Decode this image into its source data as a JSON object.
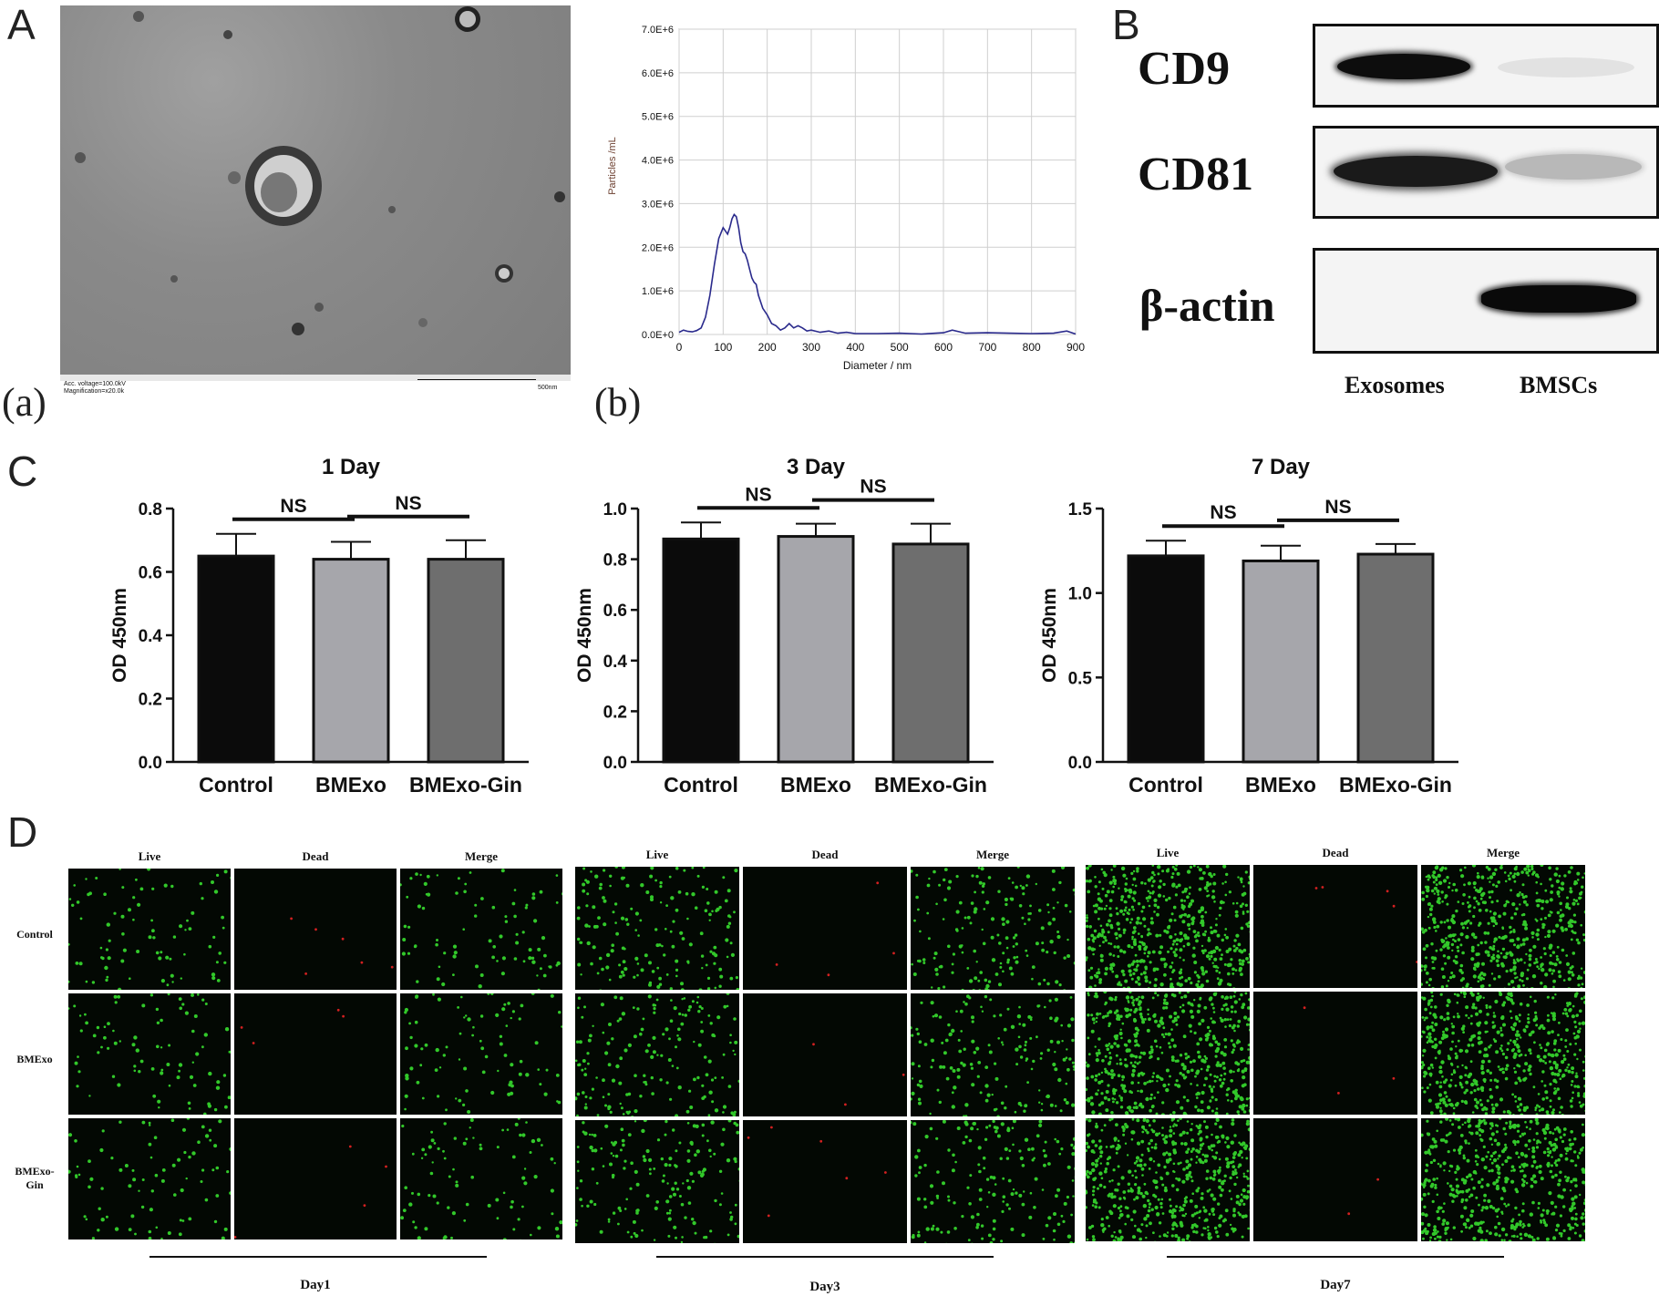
{
  "panel_letters": {
    "A": "A",
    "B": "B",
    "C": "C",
    "D": "D"
  },
  "sub_letters": {
    "a": "(a)",
    "b": "(b)"
  },
  "tem": {
    "caption_line1": "Acc. voltage=100.0kV",
    "caption_line2": "Magnification=x20.0k",
    "scale_label": "500nm"
  },
  "nta_chart": {
    "type": "line",
    "xlabel": "Diameter / nm",
    "ylabel": "Particles /mL",
    "x_ticks": [
      "0",
      "100",
      "200",
      "300",
      "400",
      "500",
      "600",
      "700",
      "800",
      "900"
    ],
    "y_ticks": [
      "0.0E+0",
      "1.0E+6",
      "2.0E+6",
      "3.0E+6",
      "4.0E+6",
      "5.0E+6",
      "6.0E+6",
      "7.0E+6"
    ],
    "xlim": [
      0,
      900
    ],
    "ylim": [
      0,
      7000000
    ],
    "line_color": "#2a2a8c",
    "x": [
      0,
      10,
      20,
      30,
      40,
      50,
      60,
      70,
      80,
      90,
      100,
      110,
      115,
      120,
      125,
      130,
      135,
      140,
      145,
      150,
      155,
      160,
      165,
      170,
      175,
      180,
      190,
      200,
      210,
      220,
      230,
      240,
      250,
      260,
      270,
      280,
      290,
      300,
      320,
      340,
      360,
      380,
      400,
      450,
      500,
      550,
      600,
      620,
      650,
      700,
      750,
      800,
      850,
      880,
      900
    ],
    "y": [
      50000,
      100000,
      70000,
      60000,
      90000,
      150000,
      400000,
      900000,
      1600000,
      2200000,
      2450000,
      2300000,
      2450000,
      2650000,
      2750000,
      2700000,
      2450000,
      2100000,
      1900000,
      1850000,
      1700000,
      1500000,
      1300000,
      1200000,
      1150000,
      900000,
      600000,
      450000,
      250000,
      200000,
      100000,
      150000,
      250000,
      150000,
      200000,
      150000,
      80000,
      100000,
      50000,
      80000,
      30000,
      50000,
      20000,
      20000,
      30000,
      10000,
      40000,
      100000,
      30000,
      40000,
      30000,
      20000,
      30000,
      80000,
      10000
    ]
  },
  "blot": {
    "proteins": [
      "CD9",
      "CD81",
      "β-actin"
    ],
    "lanes": [
      "Exosomes",
      "BMSCs"
    ]
  },
  "cck8": {
    "ylabel": "OD 450nm",
    "categories": [
      "Control",
      "BMExo",
      "BMExo-Gin"
    ],
    "bar_colors": [
      "#0b0b0b",
      "#a6a6ab",
      "#6e6e6e"
    ],
    "sig_label": "NS",
    "charts": [
      {
        "title": "1 Day",
        "ylim": [
          0,
          0.8
        ],
        "y_ticks": [
          "0.0",
          "0.2",
          "0.4",
          "0.6",
          "0.8"
        ],
        "y_tick_values": [
          0,
          0.2,
          0.4,
          0.6,
          0.8
        ],
        "values": [
          0.65,
          0.64,
          0.64
        ],
        "errors": [
          0.07,
          0.055,
          0.06
        ]
      },
      {
        "title": "3 Day",
        "ylim": [
          0,
          1.0
        ],
        "y_ticks": [
          "0.0",
          "0.2",
          "0.4",
          "0.6",
          "0.8",
          "1.0"
        ],
        "y_tick_values": [
          0,
          0.2,
          0.4,
          0.6,
          0.8,
          1.0
        ],
        "values": [
          0.88,
          0.89,
          0.86
        ],
        "errors": [
          0.065,
          0.05,
          0.08
        ]
      },
      {
        "title": "7 Day",
        "ylim": [
          0,
          1.5
        ],
        "y_ticks": [
          "0.0",
          "0.5",
          "1.0",
          "1.5"
        ],
        "y_tick_values": [
          0,
          0.5,
          1.0,
          1.5
        ],
        "values": [
          1.22,
          1.19,
          1.23
        ],
        "errors": [
          0.09,
          0.09,
          0.06
        ]
      }
    ]
  },
  "staining": {
    "columns": [
      "Live",
      "Dead",
      "Merge"
    ],
    "rows": [
      "Control",
      "BMExo",
      "BMExo-Gin"
    ],
    "days": [
      "Day1",
      "Day3",
      "Day7"
    ],
    "live_color": "#32c82a",
    "dead_color": "#d42020"
  }
}
